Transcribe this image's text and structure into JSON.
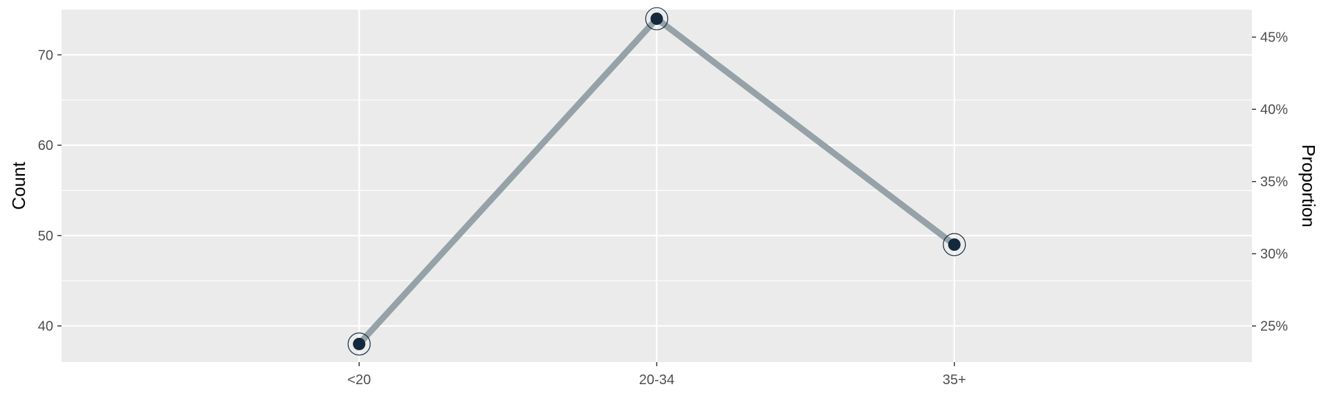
{
  "chart_data": {
    "type": "line",
    "categories": [
      "<20",
      "20-34",
      "35+"
    ],
    "values": [
      38,
      74,
      49
    ],
    "ylabel": "Count",
    "ylim": [
      36,
      75
    ],
    "y_ticks": [
      40,
      50,
      60,
      70
    ],
    "y2label": "Proportion",
    "y2lim": [
      22.5,
      46.9
    ],
    "y2_ticks": [
      25,
      30,
      35,
      40,
      45
    ],
    "y2_tick_labels": [
      "25%",
      "30%",
      "35%",
      "40%",
      "45%"
    ],
    "grid": true,
    "legend": "none"
  },
  "colors": {
    "panel": "#ebebeb",
    "grid": "#ffffff",
    "line": "#95a2a8",
    "point": "#13293d",
    "point_ring": "#13293d"
  }
}
